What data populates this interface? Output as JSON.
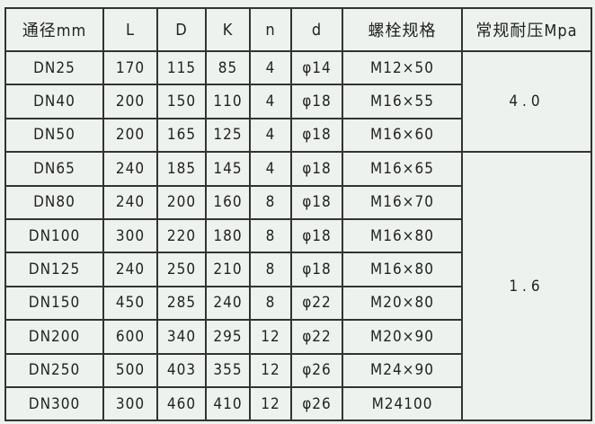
{
  "headers": [
    "通径mm",
    "L",
    "D",
    "K",
    "n",
    "d",
    "螺栓规格",
    "常规耐压Mpa"
  ],
  "rows": [
    [
      "DN25",
      "170",
      "115",
      "85",
      "4",
      "φ14",
      "M12×50"
    ],
    [
      "DN40",
      "200",
      "150",
      "110",
      "4",
      "φ18",
      "M16×55"
    ],
    [
      "DN50",
      "200",
      "165",
      "125",
      "4",
      "φ18",
      "M16×60"
    ],
    [
      "DN65",
      "240",
      "185",
      "145",
      "4",
      "φ18",
      "M16×65"
    ],
    [
      "DN80",
      "240",
      "200",
      "160",
      "8",
      "φ18",
      "M16×70"
    ],
    [
      "DN100",
      "300",
      "220",
      "180",
      "8",
      "φ18",
      "M16×80"
    ],
    [
      "DN125",
      "240",
      "250",
      "210",
      "8",
      "φ18",
      "M16×80"
    ],
    [
      "DN150",
      "450",
      "285",
      "240",
      "8",
      "φ22",
      "M20×80"
    ],
    [
      "DN200",
      "600",
      "340",
      "295",
      "12",
      "φ22",
      "M20×90"
    ],
    [
      "DN250",
      "500",
      "403",
      "355",
      "12",
      "φ26",
      "M24×90"
    ],
    [
      "DN300",
      "300",
      "460",
      "410",
      "12",
      "φ26",
      "M24100"
    ]
  ],
  "pressure_groups": [
    {
      "value": "4.0",
      "rows": 3
    },
    {
      "value": "1.6",
      "rows": 8
    }
  ]
}
